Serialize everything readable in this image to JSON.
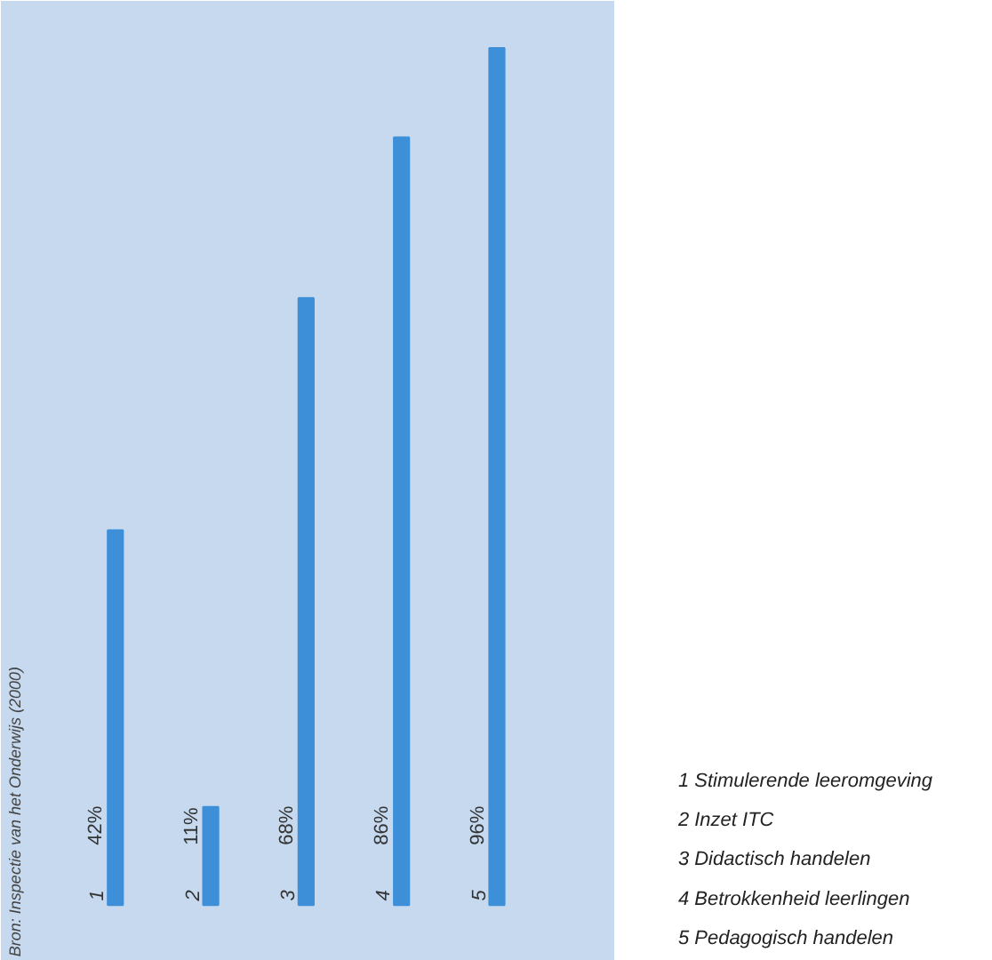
{
  "chart_data": {
    "type": "bar",
    "categories": [
      "1",
      "2",
      "3",
      "4",
      "5"
    ],
    "values": [
      42,
      11,
      68,
      86,
      96
    ],
    "value_labels": [
      "42%",
      "11%",
      "68%",
      "86%",
      "96%"
    ],
    "color": "#3d8fd8",
    "grid": false,
    "annotations": [
      "Bron: Inspectie van het Onderwijs (2000)",
      "1  Stimulerende leeromgeving",
      "2  Inzet ITC",
      "3  Didactisch handelen",
      "4  Betrokkenheid leerlingen",
      "5  Pedagogisch handelen"
    ]
  }
}
